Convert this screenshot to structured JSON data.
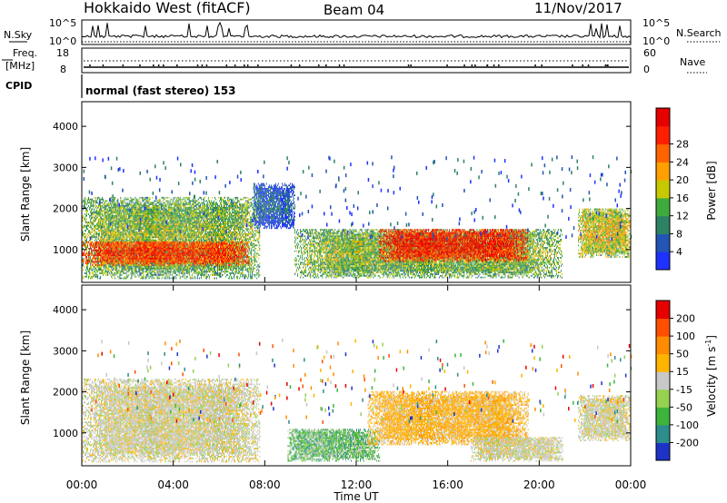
{
  "header": {
    "title": "Hokkaido West (fitACF)",
    "beam": "Beam 04",
    "date": "11/Nov/2017"
  },
  "strip": {
    "nsky_label": "N.Sky",
    "nsky_ticks": [
      "10^5",
      "10^0"
    ],
    "nsearch_label": "N.Search",
    "freq_label_1": "Freq.",
    "freq_label_2": "[MHz]",
    "freq_ticks": [
      "18",
      "8"
    ],
    "nave_label": "Nave",
    "nave_ticks": [
      "60",
      "0"
    ],
    "cpid_label": "CPID",
    "cpid_text": "normal (fast stereo) 153"
  },
  "chart_data": [
    {
      "type": "heatmap",
      "panel": "power",
      "ylabel": "Slant Range [km]",
      "y_ticks": [
        1000,
        2000,
        3000,
        4000
      ],
      "ylim": [
        200,
        4600
      ],
      "xlim": [
        0,
        24
      ],
      "colorbar": {
        "label": "Power [dB]",
        "ticks": [
          "4",
          "8",
          "12",
          "16",
          "20",
          "24",
          "28"
        ],
        "colors": [
          "#1e32ff",
          "#2255b4",
          "#2d8264",
          "#3faa3c",
          "#c8c800",
          "#ffa000",
          "#ff6400",
          "#ff1e00",
          "#e60000"
        ]
      },
      "regions": [
        {
          "t0": 0.0,
          "t1": 7.8,
          "r0": 280,
          "r1": 2250,
          "level": 0.45
        },
        {
          "t0": 0.0,
          "t1": 7.3,
          "r0": 600,
          "r1": 1200,
          "level": 0.85
        },
        {
          "t0": 7.5,
          "t1": 9.3,
          "r0": 1500,
          "r1": 2600,
          "level": 0.2
        },
        {
          "t0": 9.3,
          "t1": 21.0,
          "r0": 300,
          "r1": 1500,
          "level": 0.45
        },
        {
          "t0": 13.0,
          "t1": 19.5,
          "r0": 700,
          "r1": 1500,
          "level": 0.9
        },
        {
          "t0": 21.7,
          "t1": 24.0,
          "r0": 800,
          "r1": 2000,
          "level": 0.55
        }
      ]
    },
    {
      "type": "heatmap",
      "panel": "velocity",
      "ylabel": "Slant Range [km]",
      "y_ticks": [
        1000,
        2000,
        3000,
        4000
      ],
      "ylim": [
        200,
        4600
      ],
      "xlim": [
        0,
        24
      ],
      "x_ticks": [
        "00:00",
        "04:00",
        "08:00",
        "12:00",
        "16:00",
        "20:00",
        "00:00"
      ],
      "xlabel": "Time UT",
      "colorbar": {
        "label": "Velocity [m s",
        "label_superscript": "-1",
        "label_close": "]",
        "ticks": [
          "200",
          "100",
          "50",
          "15",
          "-15",
          "-50",
          "-100",
          "-200"
        ],
        "colors": [
          "#1e32c8",
          "#2d8c8c",
          "#3cb43c",
          "#96d250",
          "#c8c8c8",
          "#ffb400",
          "#ff8c00",
          "#ff5000",
          "#e60000"
        ]
      },
      "regions": [
        {
          "t0": 0.0,
          "t1": 7.8,
          "r0": 280,
          "r1": 2300,
          "level": "grey"
        },
        {
          "t0": 9.0,
          "t1": 13.0,
          "r0": 300,
          "r1": 1100,
          "level": "green"
        },
        {
          "t0": 12.5,
          "t1": 19.5,
          "r0": 700,
          "r1": 2000,
          "level": "orange"
        },
        {
          "t0": 17.0,
          "t1": 21.0,
          "r0": 300,
          "r1": 900,
          "level": "grey"
        },
        {
          "t0": 21.7,
          "t1": 24.0,
          "r0": 800,
          "r1": 1900,
          "level": "grey"
        }
      ]
    }
  ]
}
